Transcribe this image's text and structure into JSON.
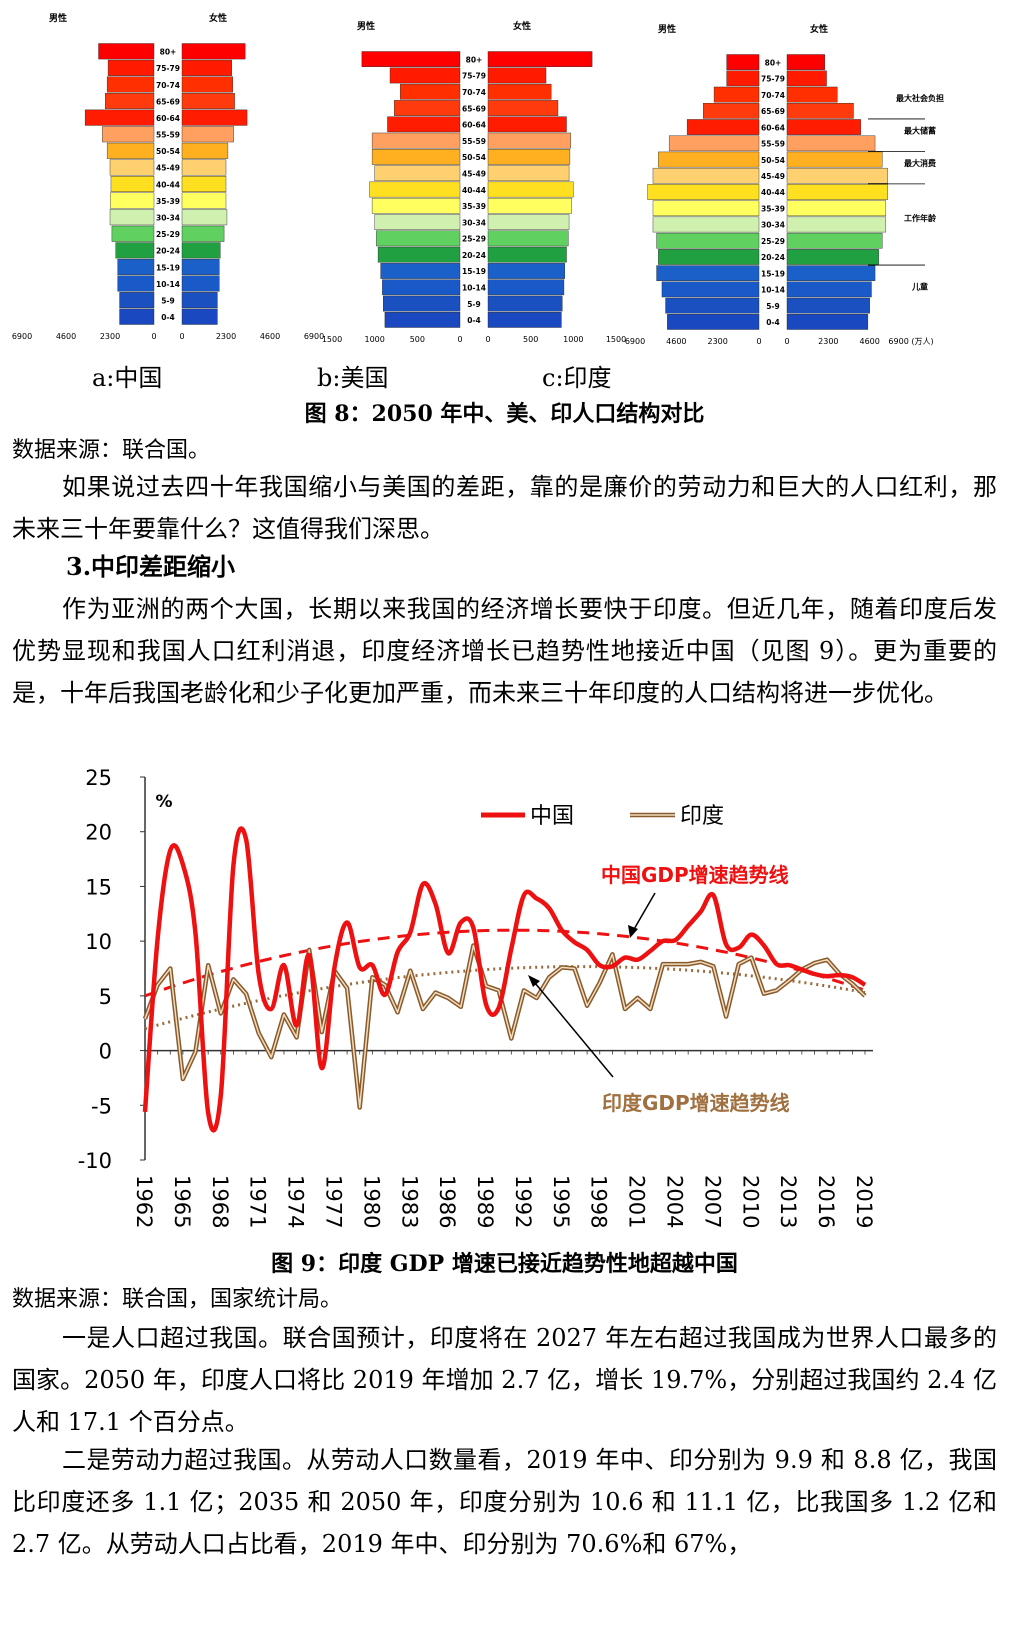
{
  "pyramids": {
    "age_groups": [
      "80+",
      "75-79",
      "70-74",
      "65-69",
      "60-64",
      "55-59",
      "50-54",
      "45-49",
      "40-44",
      "35-39",
      "30-34",
      "25-29",
      "20-24",
      "15-19",
      "10-14",
      "5-9",
      "0-4"
    ],
    "band_colors": [
      "#ff0000",
      "#ff1a00",
      "#ff2f00",
      "#ff3a0c",
      "#ff1c00",
      "#ffa060",
      "#ffb020",
      "#ffd070",
      "#ffe020",
      "#ffff60",
      "#d0f0b0",
      "#60d060",
      "#20a040",
      "#1a60c8",
      "#1a5ac8",
      "#1a50c0",
      "#1a48c0"
    ],
    "china": {
      "male_label": "男性",
      "female_label": "女性",
      "sub_caption": "a:中国",
      "ticks": [
        "6900",
        "4600",
        "2300",
        "0",
        "0",
        "2300",
        "4600",
        "6900"
      ],
      "male": [
        2900,
        2400,
        2450,
        2550,
        3600,
        2700,
        2450,
        2300,
        2250,
        2280,
        2300,
        2200,
        2000,
        1900,
        1900,
        1800,
        1800
      ],
      "female": [
        3300,
        2600,
        2650,
        2750,
        3400,
        2700,
        2400,
        2300,
        2300,
        2300,
        2350,
        2200,
        2000,
        1950,
        1950,
        1850,
        1850
      ]
    },
    "usa": {
      "male_label": "男性",
      "female_label": "女性",
      "sub_caption": "b:美国",
      "ticks": [
        "1500",
        "1000",
        "500",
        "0",
        "0",
        "500",
        "1000",
        "1500"
      ],
      "male": [
        1150,
        820,
        700,
        770,
        850,
        1030,
        1030,
        1000,
        1060,
        1030,
        1000,
        980,
        960,
        930,
        910,
        900,
        880
      ],
      "female": [
        1220,
        680,
        740,
        820,
        920,
        970,
        960,
        950,
        1000,
        980,
        950,
        940,
        920,
        900,
        890,
        870,
        860
      ],
      "max": 1500
    },
    "india": {
      "male_label": "男性",
      "female_label": "女性",
      "sub_caption": "c:印度",
      "ticks": [
        "6900",
        "4600",
        "2300",
        "0",
        "0",
        "2300",
        "4600",
        "6900 (万人)"
      ],
      "male": [
        1800,
        1800,
        2500,
        3100,
        4000,
        5000,
        5600,
        5900,
        6200,
        5900,
        5900,
        5700,
        5600,
        5700,
        5400,
        5200,
        5100
      ],
      "female": [
        2100,
        2200,
        2800,
        3700,
        4100,
        4900,
        5300,
        5600,
        5600,
        5500,
        5500,
        5300,
        5100,
        4900,
        4700,
        4600,
        4500
      ],
      "max": 6900,
      "annotations": [
        "最大社会负担",
        "最大储蓄",
        "最大消费",
        "工作年龄",
        "儿童"
      ]
    },
    "figure_caption": "图 8：2050 年中、美、印人口结构对比",
    "source": "数据来源：联合国。"
  },
  "text": {
    "para1": "如果说过去四十年我国缩小与美国的差距，靠的是廉价的劳动力和巨大的人口红利，那未来三十年要靠什么？这值得我们深思。",
    "heading": "3.中印差距缩小",
    "para2": "作为亚洲的两个大国，长期以来我国的经济增长要快于印度。但近几年，随着印度后发优势显现和我国人口红利消退，印度经济增长已趋势性地接近中国（见图 9）。更为重要的是，十年后我国老龄化和少子化更加严重，而未来三十年印度的人口结构将进一步优化。",
    "fig9_caption": "图 9：印度 GDP 增速已接近趋势性地超越中国",
    "fig9_source": "数据来源：联合国，国家统计局。",
    "para3": "一是人口超过我国。联合国预计，印度将在 2027 年左右超过我国成为世界人口最多的国家。2050 年，印度人口将比 2019 年增加 2.7 亿，增长 19.7%，分别超过我国约 2.4 亿人和 17.1 个百分点。",
    "para4": "二是劳动力超过我国。从劳动人口数量看，2019 年中、印分别为 9.9 和 8.8 亿，我国比印度还多 1.1 亿；2035 和 2050 年，印度分别为 10.6 和 11.1 亿，比我国多 1.2 亿和 2.7 亿。从劳动人口占比看，2019 年中、印分别为 70.6%和 67%，"
  },
  "chart_data": {
    "type": "line",
    "ylabel": "%",
    "ylim": [
      -10,
      25
    ],
    "yticks": [
      "25",
      "20",
      "15",
      "10",
      "5",
      "0",
      "-5",
      "-10"
    ],
    "xtick_labels": [
      "1962",
      "1965",
      "1968",
      "1971",
      "1974",
      "1977",
      "1980",
      "1983",
      "1986",
      "1989",
      "1992",
      "1995",
      "1998",
      "2001",
      "2004",
      "2007",
      "2010",
      "2013",
      "2016",
      "2019"
    ],
    "x": [
      1962,
      1963,
      1964,
      1965,
      1966,
      1967,
      1968,
      1969,
      1970,
      1971,
      1972,
      1973,
      1974,
      1975,
      1976,
      1977,
      1978,
      1979,
      1980,
      1981,
      1982,
      1983,
      1984,
      1985,
      1986,
      1987,
      1988,
      1989,
      1990,
      1991,
      1992,
      1993,
      1994,
      1995,
      1996,
      1997,
      1998,
      1999,
      2000,
      2001,
      2002,
      2003,
      2004,
      2005,
      2006,
      2007,
      2008,
      2009,
      2010,
      2011,
      2012,
      2013,
      2014,
      2015,
      2016,
      2017,
      2018,
      2019
    ],
    "series": [
      {
        "name": "中国",
        "color": "#ee1111",
        "values": [
          -5.6,
          10.2,
          18.3,
          17.0,
          10.7,
          -5.7,
          -4.1,
          16.9,
          19.3,
          7.0,
          3.8,
          7.8,
          2.3,
          8.7,
          -1.6,
          7.6,
          11.7,
          7.6,
          7.8,
          5.1,
          9.0,
          10.8,
          15.2,
          13.4,
          8.9,
          11.7,
          11.2,
          4.2,
          3.9,
          9.3,
          14.2,
          13.9,
          13.0,
          11.0,
          9.9,
          9.2,
          7.8,
          7.7,
          8.5,
          8.3,
          9.1,
          10.0,
          10.1,
          11.4,
          12.7,
          14.2,
          9.7,
          9.4,
          10.6,
          9.6,
          7.9,
          7.8,
          7.4,
          7.0,
          6.8,
          6.9,
          6.7,
          6.0
        ]
      },
      {
        "name": "印度",
        "color": "#b8895a",
        "values": [
          2.9,
          6.0,
          7.5,
          -2.6,
          -0.1,
          7.8,
          3.4,
          6.5,
          5.2,
          1.6,
          -0.6,
          3.3,
          1.2,
          9.2,
          1.7,
          7.3,
          5.7,
          -5.2,
          6.7,
          6.0,
          3.5,
          7.3,
          3.8,
          5.3,
          4.8,
          4.0,
          9.6,
          5.9,
          5.5,
          1.1,
          5.5,
          4.8,
          6.7,
          7.6,
          7.5,
          4.1,
          6.2,
          8.8,
          3.8,
          4.8,
          3.8,
          7.9,
          7.9,
          7.9,
          8.1,
          7.7,
          3.1,
          7.9,
          8.5,
          5.2,
          5.5,
          6.4,
          7.4,
          8.0,
          8.3,
          7.0,
          6.1,
          5.0
        ]
      },
      {
        "name": "中国GDP增速趋势线",
        "color": "#ee1111",
        "style": "dashed",
        "trend": [
          5.0,
          11.0,
          5.5
        ]
      },
      {
        "name": "印度GDP增速趋势线",
        "color": "#9a6a3a",
        "style": "dotted",
        "trend": [
          2.0,
          7.5,
          5.3
        ]
      }
    ],
    "legend": [
      "中国",
      "印度"
    ],
    "annotations": [
      "中国GDP增速趋势线",
      "印度GDP增速趋势线"
    ]
  }
}
